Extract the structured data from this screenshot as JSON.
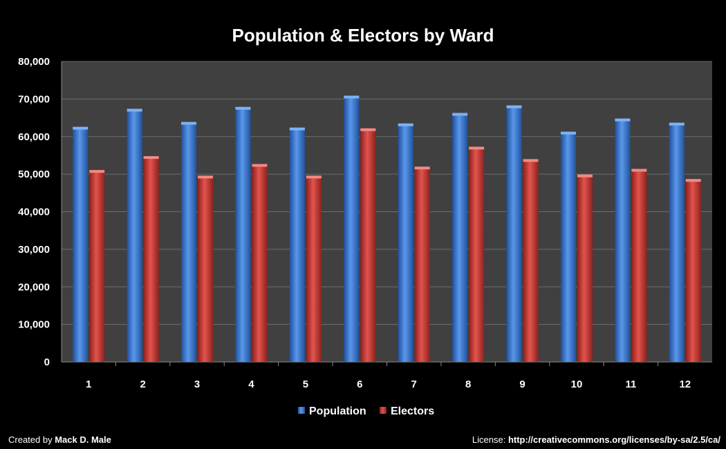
{
  "chart_data": {
    "type": "bar",
    "title": "Population & Electors by Ward",
    "xlabel": "",
    "ylabel": "",
    "categories": [
      "1",
      "2",
      "3",
      "4",
      "5",
      "6",
      "7",
      "8",
      "9",
      "10",
      "11",
      "12"
    ],
    "series": [
      {
        "name": "Population",
        "values": [
          62600,
          67400,
          63900,
          67900,
          62400,
          70900,
          63500,
          66300,
          68300,
          61300,
          64800,
          63700
        ],
        "color": "#3f7fd4"
      },
      {
        "name": "Electors",
        "values": [
          51100,
          54800,
          49600,
          52700,
          49600,
          62200,
          52000,
          57300,
          54000,
          49900,
          51400,
          48700
        ],
        "color": "#c93a34"
      }
    ],
    "ylim": [
      0,
      80000
    ],
    "yticks": [
      "0",
      "10,000",
      "20,000",
      "30,000",
      "40,000",
      "50,000",
      "60,000",
      "70,000",
      "80,000"
    ],
    "grid": true,
    "legend_position": "bottom",
    "plot_background": "#404040",
    "page_background": "#000000"
  },
  "footer": {
    "created_prefix": "Created by",
    "author": "Mack D. Male",
    "license_prefix": "License:",
    "license_url": "http://creativecommons.org/licenses/by-sa/2.5/ca/"
  }
}
